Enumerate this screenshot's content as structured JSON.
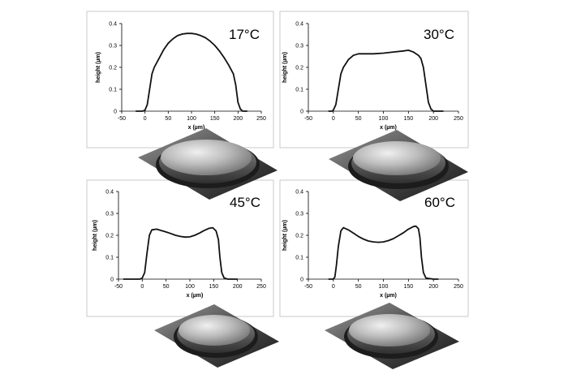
{
  "chart_data": [
    {
      "type": "line",
      "annotation": "17°C",
      "xlabel": "x (µm)",
      "ylabel": "height (µm)",
      "xlim": [
        -50,
        250
      ],
      "ylim": [
        0,
        0.4
      ],
      "x_ticks": [
        -50,
        0,
        50,
        100,
        150,
        200,
        250
      ],
      "y_ticks": [
        0,
        0.1,
        0.2,
        0.3,
        0.4
      ],
      "grid": false,
      "x": [
        -20,
        -5,
        0,
        5,
        10,
        15,
        20,
        30,
        40,
        50,
        60,
        70,
        80,
        90,
        100,
        110,
        120,
        130,
        140,
        150,
        160,
        170,
        180,
        190,
        195,
        200,
        205,
        210,
        220
      ],
      "y": [
        0,
        0,
        0.005,
        0.03,
        0.1,
        0.17,
        0.2,
        0.24,
        0.28,
        0.31,
        0.33,
        0.345,
        0.352,
        0.355,
        0.355,
        0.352,
        0.345,
        0.335,
        0.32,
        0.3,
        0.275,
        0.245,
        0.21,
        0.17,
        0.12,
        0.04,
        0.01,
        0,
        0
      ]
    },
    {
      "type": "line",
      "annotation": "30°C",
      "xlabel": "x (µm)",
      "ylabel": "height (µm)",
      "xlim": [
        -50,
        250
      ],
      "ylim": [
        0,
        0.4
      ],
      "x_ticks": [
        -50,
        0,
        50,
        100,
        150,
        200,
        250
      ],
      "y_ticks": [
        0,
        0.1,
        0.2,
        0.3,
        0.4
      ],
      "grid": false,
      "x": [
        -10,
        -3,
        0,
        5,
        10,
        15,
        20,
        30,
        40,
        50,
        60,
        80,
        100,
        120,
        140,
        150,
        160,
        170,
        175,
        180,
        185,
        190,
        195,
        200,
        220
      ],
      "y": [
        0,
        0,
        0.005,
        0.03,
        0.1,
        0.17,
        0.2,
        0.235,
        0.255,
        0.262,
        0.262,
        0.262,
        0.265,
        0.27,
        0.275,
        0.278,
        0.27,
        0.255,
        0.24,
        0.2,
        0.12,
        0.04,
        0.01,
        0,
        0
      ]
    },
    {
      "type": "line",
      "annotation": "45°C",
      "xlabel": "x (µm)",
      "ylabel": "height (µm)",
      "xlim": [
        -50,
        250
      ],
      "ylim": [
        0,
        0.4
      ],
      "x_ticks": [
        -50,
        0,
        50,
        100,
        150,
        200,
        250
      ],
      "y_ticks": [
        0,
        0.1,
        0.2,
        0.3,
        0.4
      ],
      "grid": false,
      "x": [
        -40,
        -5,
        0,
        5,
        10,
        15,
        20,
        30,
        40,
        50,
        60,
        70,
        80,
        90,
        100,
        110,
        120,
        130,
        140,
        148,
        155,
        160,
        163,
        167,
        172,
        180,
        200
      ],
      "y": [
        0,
        0,
        0.005,
        0.03,
        0.12,
        0.2,
        0.225,
        0.228,
        0.222,
        0.215,
        0.208,
        0.2,
        0.195,
        0.192,
        0.193,
        0.2,
        0.21,
        0.222,
        0.232,
        0.235,
        0.22,
        0.18,
        0.1,
        0.03,
        0.005,
        0,
        0
      ]
    },
    {
      "type": "line",
      "annotation": "60°C",
      "xlabel": "x (µm)",
      "ylabel": "height (µm)",
      "xlim": [
        -50,
        250
      ],
      "ylim": [
        0,
        0.4
      ],
      "x_ticks": [
        -50,
        0,
        50,
        100,
        150,
        200,
        250
      ],
      "y_ticks": [
        0,
        0.1,
        0.2,
        0.3,
        0.4
      ],
      "grid": false,
      "x": [
        -10,
        0,
        3,
        6,
        10,
        15,
        20,
        30,
        40,
        50,
        60,
        70,
        80,
        90,
        100,
        110,
        120,
        130,
        140,
        150,
        160,
        165,
        170,
        173,
        176,
        180,
        185,
        200,
        210
      ],
      "y": [
        0,
        0,
        0.01,
        0.06,
        0.15,
        0.22,
        0.235,
        0.225,
        0.21,
        0.195,
        0.183,
        0.174,
        0.17,
        0.168,
        0.17,
        0.176,
        0.185,
        0.198,
        0.212,
        0.228,
        0.24,
        0.242,
        0.23,
        0.19,
        0.1,
        0.03,
        0.005,
        0,
        0
      ]
    }
  ],
  "colors": {
    "frame": "#c8c8c8",
    "curve": "#111111",
    "surface_light": "#d8d8d8",
    "surface_dark": "#2a2a2a"
  }
}
